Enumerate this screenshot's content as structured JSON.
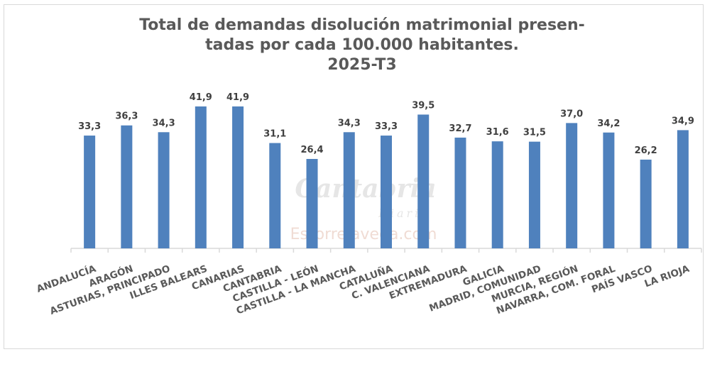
{
  "chart_data": {
    "type": "bar",
    "title_lines": [
      "Total de demandas disolución matrimonial presen-",
      "tadas por cada 100.000 habitantes.",
      "2025-T3"
    ],
    "categories": [
      "ANDALUCÍA",
      "ARAGÓN",
      "ASTURIAS, PRINCIPADO",
      "ILLES BALEARS",
      "CANARIAS",
      "CANTABRIA",
      "CASTILLA - LEÓN",
      "CASTILLA - LA MANCHA",
      "CATALUÑA",
      "C. VALENCIANA",
      "EXTREMADURA",
      "GALICIA",
      "MADRID, COMUNIDAD",
      "MURCIA, REGIÓN",
      "NAVARRA, COM. FORAL",
      "PAÍS VASCO",
      "LA RIOJA"
    ],
    "values": [
      33.3,
      36.3,
      34.3,
      41.9,
      41.9,
      31.1,
      26.4,
      34.3,
      33.3,
      39.5,
      32.7,
      31.6,
      31.5,
      37.0,
      34.2,
      26.2,
      34.9
    ],
    "data_labels": [
      "33,3",
      "36,3",
      "34,3",
      "41,9",
      "41,9",
      "31,1",
      "26,4",
      "34,3",
      "33,3",
      "39,5",
      "32,7",
      "31,6",
      "31,5",
      "37,0",
      "34,2",
      "26,2",
      "34,9"
    ],
    "ylim": [
      0,
      42
    ],
    "grid": false,
    "legend": "none",
    "bar_color": "#4f81bd",
    "text_color": "#595959"
  },
  "watermark": {
    "logo": "Cantabria Diario",
    "site": "EsTorrelavega.com"
  }
}
